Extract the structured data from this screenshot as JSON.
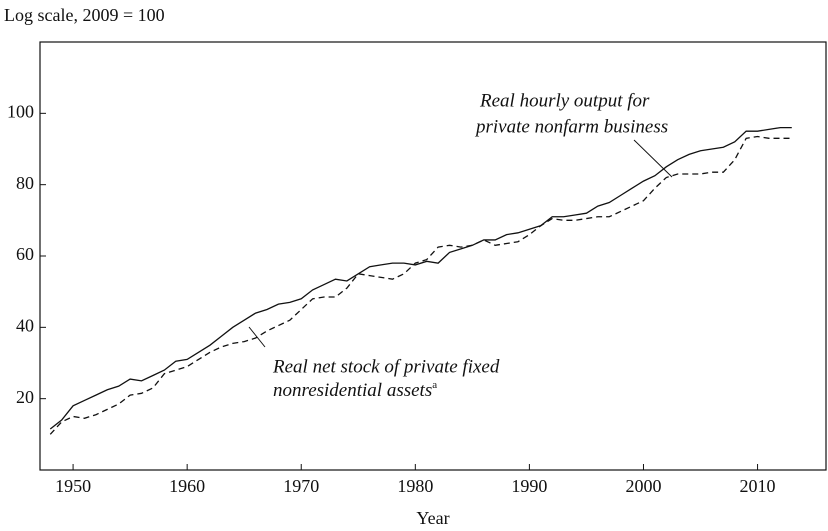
{
  "chart_data": {
    "type": "line",
    "y_axis_label": "Log scale, 2009 = 100",
    "x_axis_label": "Year",
    "x": [
      1948,
      1949,
      1950,
      1951,
      1952,
      1953,
      1954,
      1955,
      1956,
      1957,
      1958,
      1959,
      1960,
      1961,
      1962,
      1963,
      1964,
      1965,
      1966,
      1967,
      1968,
      1969,
      1970,
      1971,
      1972,
      1973,
      1974,
      1975,
      1976,
      1977,
      1978,
      1979,
      1980,
      1981,
      1982,
      1983,
      1984,
      1985,
      1986,
      1987,
      1988,
      1989,
      1990,
      1991,
      1992,
      1993,
      1994,
      1995,
      1996,
      1997,
      1998,
      1999,
      2000,
      2001,
      2002,
      2003,
      2004,
      2005,
      2006,
      2007,
      2008,
      2009,
      2010,
      2011,
      2012,
      2013
    ],
    "series": [
      {
        "name": "Real hourly output for private nonfarm business",
        "color": "#111111",
        "dash": "solid",
        "values": [
          11.5,
          14,
          18,
          19.5,
          21,
          22.5,
          23.5,
          25.5,
          25,
          26.5,
          28,
          30.5,
          31,
          33,
          35,
          37.5,
          40,
          42,
          44,
          45,
          46.5,
          47,
          48,
          50.5,
          52,
          53.5,
          53,
          55,
          57,
          57.5,
          58,
          58,
          57.5,
          58.5,
          58,
          61,
          62,
          63,
          64.5,
          64.5,
          66,
          66.5,
          67.5,
          68.5,
          71,
          71,
          71.5,
          72,
          74,
          75,
          77,
          79,
          81,
          82.5,
          85,
          87,
          88.5,
          89.5,
          90,
          90.5,
          92,
          95,
          95,
          95.5,
          96,
          96
        ]
      },
      {
        "name": "Real net stock of private fixed nonresidential assets",
        "color": "#111111",
        "dash": "dashed",
        "values": [
          10,
          13.5,
          15,
          14.5,
          15.5,
          17,
          18.5,
          21,
          21.5,
          23,
          27,
          28,
          29,
          31,
          33,
          34.5,
          35.5,
          36,
          37,
          39,
          40.5,
          42,
          45,
          48,
          48.5,
          48.5,
          51,
          55,
          54.5,
          54,
          53.5,
          55,
          58,
          59,
          62.5,
          63,
          62.5,
          63,
          64.5,
          63,
          63.5,
          64,
          66,
          68.5,
          70.5,
          70,
          70,
          70.5,
          71,
          71,
          72.5,
          74,
          75.5,
          79,
          82,
          83,
          83,
          83,
          83.5,
          83.5,
          87,
          93,
          93.5,
          93,
          93,
          93
        ]
      }
    ],
    "annotations": [
      {
        "lines": [
          "Real hourly output for",
          "private nonfarm business"
        ]
      },
      {
        "lines": [
          "Real net stock of private fixed",
          "nonresidential assets"
        ],
        "superscript": "a"
      }
    ],
    "xlim": [
      1947.1,
      2016
    ],
    "xticks": [
      1950,
      1960,
      1970,
      1980,
      1990,
      2000,
      2010
    ],
    "ylim": [
      0,
      120
    ],
    "yticks": [
      20,
      40,
      60,
      80,
      100
    ],
    "grid": false
  }
}
